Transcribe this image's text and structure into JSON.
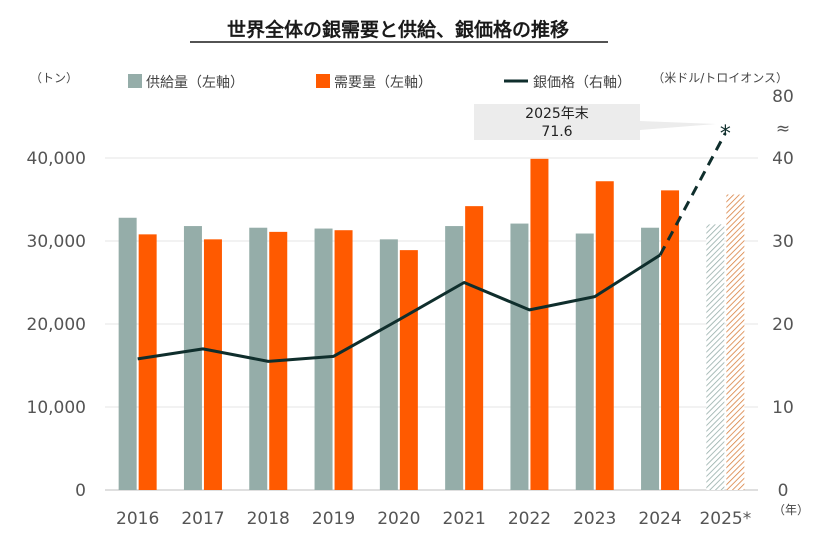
{
  "chart_data": {
    "type": "bar",
    "title": "世界全体の銀需要と供給、銀価格の推移",
    "categories": [
      "2016",
      "2017",
      "2018",
      "2019",
      "2020",
      "2021",
      "2022",
      "2023",
      "2024",
      "2025*"
    ],
    "series": [
      {
        "name": "供給量（左軸）",
        "axis": "left",
        "type": "bar",
        "color": "#95ada9",
        "values": [
          32800,
          31800,
          31600,
          31500,
          30200,
          31800,
          32100,
          30900,
          31600,
          32000
        ]
      },
      {
        "name": "需要量（左軸）",
        "axis": "left",
        "type": "bar",
        "color": "#ff5a00",
        "values": [
          30800,
          30200,
          31100,
          31300,
          28900,
          34200,
          39900,
          37200,
          36100,
          35600
        ]
      },
      {
        "name": "銀価格（右軸）",
        "axis": "right",
        "type": "line",
        "color": "#0f2e2c",
        "values": [
          15.8,
          17.0,
          15.5,
          16.1,
          20.5,
          25.0,
          21.7,
          23.3,
          28.3,
          43.0
        ]
      }
    ],
    "projected_category": "2025*",
    "left_axis": {
      "unit": "（トン）",
      "min": 0,
      "max": 40000,
      "ticks": [
        "0",
        "10,000",
        "20,000",
        "30,000",
        "40,000"
      ]
    },
    "right_axis": {
      "unit": "（米ドル/トロイオンス）",
      "min": 0,
      "max": 40,
      "ticks": [
        "0",
        "10",
        "20",
        "30",
        "40"
      ],
      "top_label": "80",
      "break_mark": "≈"
    },
    "x_unit": "（年）",
    "annotation": {
      "line1": "2025年末",
      "line2": "71.6",
      "marker": "*"
    },
    "grid": true,
    "legend_position": "top"
  }
}
